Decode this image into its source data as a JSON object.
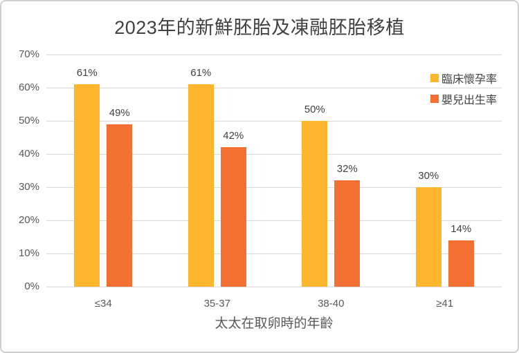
{
  "chart_data": {
    "type": "bar",
    "title": "2023年的新鮮胚胎及凍融胚胎移植",
    "categories": [
      "≤34",
      "35-37",
      "38-40",
      "≥41"
    ],
    "series": [
      {
        "key": "clinical-pregnancy-rate",
        "name": "臨床懷孕率",
        "color": "#FDB62E",
        "values": [
          61,
          61,
          50,
          30
        ]
      },
      {
        "key": "live-birth-rate",
        "name": "嬰兒出生率",
        "color": "#F37033",
        "values": [
          49,
          42,
          32,
          14
        ]
      }
    ],
    "xlabel": "太太在取卵時的年齡",
    "ylabel": "",
    "ylim": [
      0,
      70
    ],
    "ytick_step": 10,
    "ytick_suffix": "%",
    "data_label_suffix": "%",
    "grid": true,
    "legend_position": "top-right-inside",
    "data_labels": true,
    "colors": {
      "title_text": "#404040",
      "axis_text": "#595959",
      "data_label_text": "#404040",
      "gridline": "#d9d9d9",
      "frame_border": "#d0d0d0",
      "background": "#ffffff"
    }
  }
}
